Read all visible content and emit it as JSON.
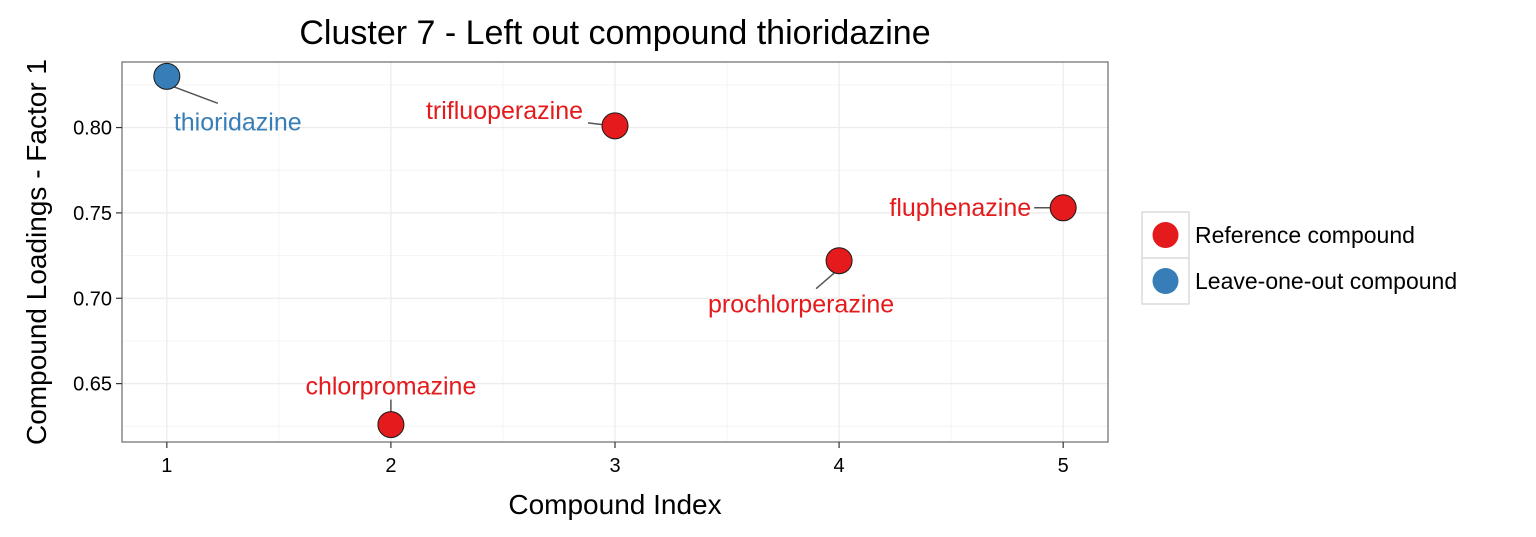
{
  "chart_data": {
    "type": "scatter",
    "title": "Cluster 7 - Left out compound thioridazine",
    "xlabel": "Compound Index",
    "ylabel": "Compound Loadings - Factor 1",
    "xlim": [
      0.8,
      5.2
    ],
    "ylim": [
      0.6158,
      0.8384
    ],
    "x_ticks": [
      1,
      2,
      3,
      4,
      5
    ],
    "y_ticks": [
      0.65,
      0.7,
      0.75,
      0.8
    ],
    "x_tick_labels": [
      "1",
      "2",
      "3",
      "4",
      "5"
    ],
    "y_tick_labels": [
      "0.65",
      "0.70",
      "0.75",
      "0.80"
    ],
    "grid": true,
    "legend_position": "right",
    "series": [
      {
        "name": "Reference compound",
        "color": "#e41a1c",
        "points": [
          {
            "x": 2,
            "y": 0.626,
            "label": "chlorpromazine"
          },
          {
            "x": 3,
            "y": 0.801,
            "label": "trifluoperazine"
          },
          {
            "x": 4,
            "y": 0.722,
            "label": "prochlorperazine"
          },
          {
            "x": 5,
            "y": 0.753,
            "label": "fluphenazine"
          }
        ]
      },
      {
        "name": "Leave-one-out compound",
        "color": "#377eb8",
        "points": [
          {
            "x": 1,
            "y": 0.83,
            "label": "thioridazine"
          }
        ]
      }
    ]
  }
}
